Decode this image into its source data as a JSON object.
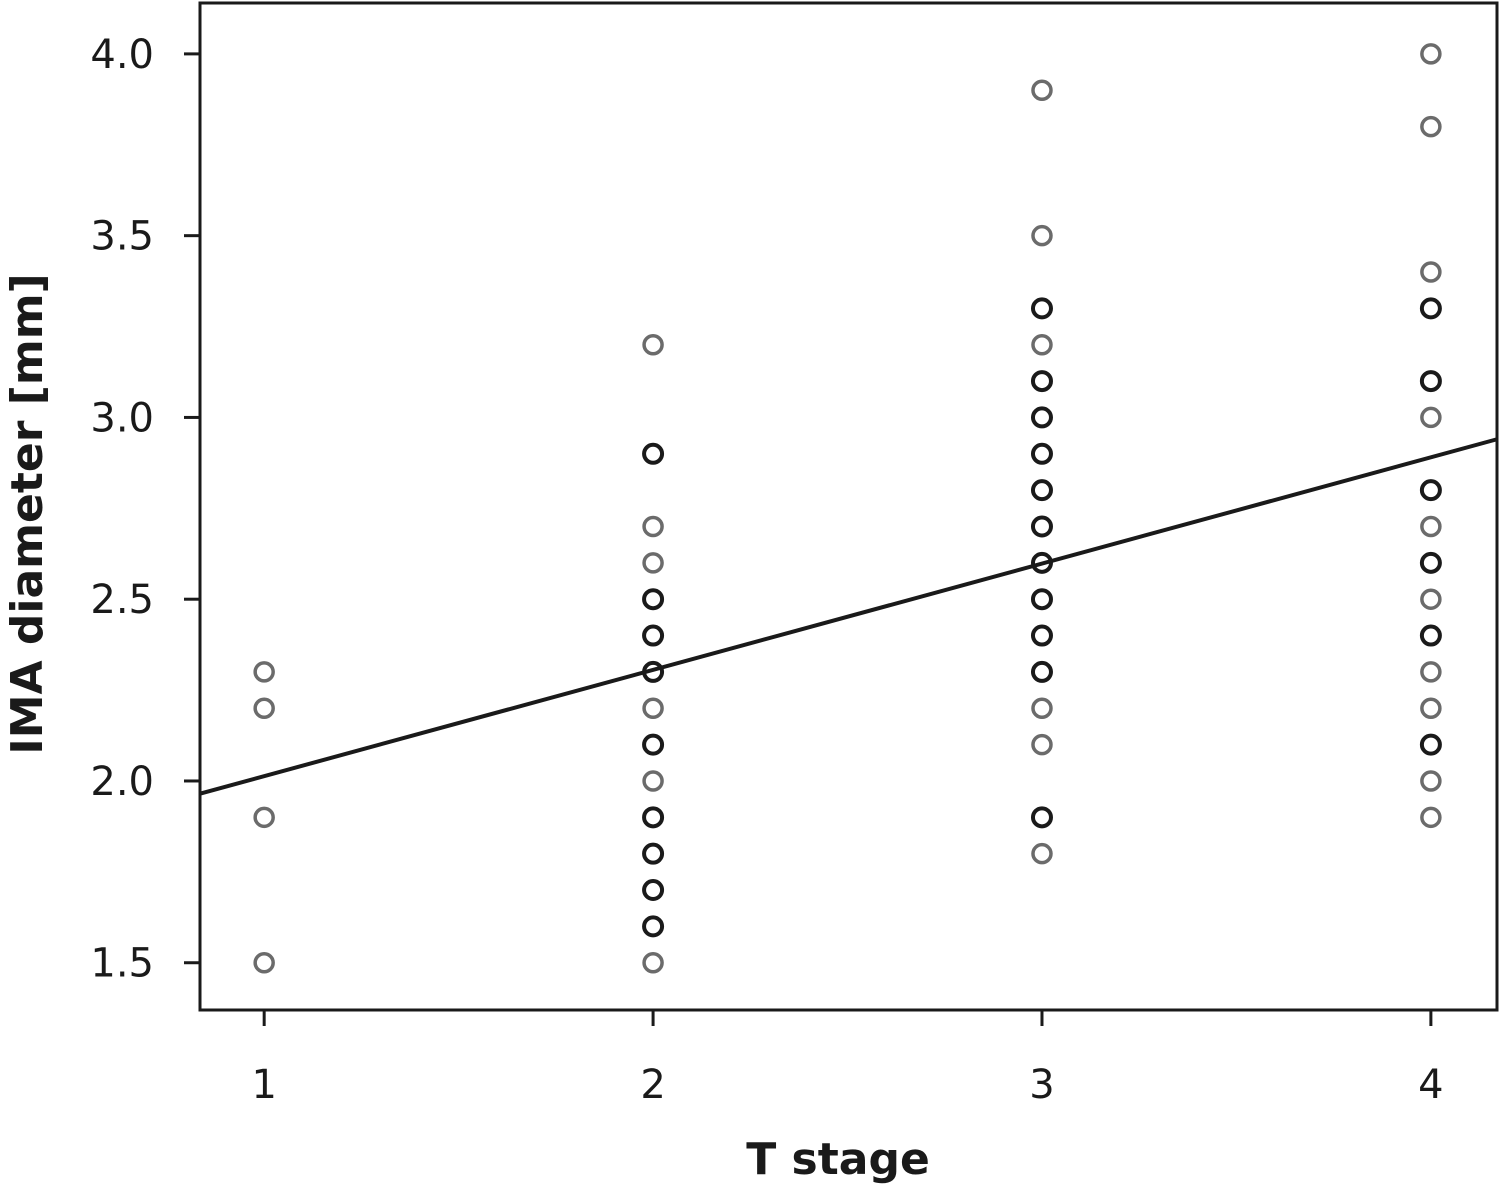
{
  "chart_data": {
    "type": "scatter",
    "xlabel": "T stage",
    "ylabel": "IMA diameter [mm]",
    "x_ticks": [
      1,
      2,
      3,
      4
    ],
    "x_tick_labels": [
      "1",
      "2",
      "3",
      "4"
    ],
    "y_ticks": [
      1.5,
      2.0,
      2.5,
      3.0,
      3.5,
      4.0
    ],
    "y_tick_labels": [
      "1.5",
      "2.0",
      "2.5",
      "3.0",
      "3.5",
      "4.0"
    ],
    "xlim": [
      0.835,
      4.17
    ],
    "ylim": [
      1.37,
      4.14
    ],
    "grid": false,
    "colors": {
      "single": "#6b6b6b",
      "overlap": "#1a1a1a",
      "line": "#1a1a1a"
    },
    "points": [
      {
        "x": 1,
        "y": 2.3,
        "n": 1
      },
      {
        "x": 1,
        "y": 2.2,
        "n": 1
      },
      {
        "x": 1,
        "y": 1.9,
        "n": 1
      },
      {
        "x": 1,
        "y": 1.5,
        "n": 1
      },
      {
        "x": 2,
        "y": 3.2,
        "n": 1
      },
      {
        "x": 2,
        "y": 2.9,
        "n": 2
      },
      {
        "x": 2,
        "y": 2.7,
        "n": 1
      },
      {
        "x": 2,
        "y": 2.6,
        "n": 1
      },
      {
        "x": 2,
        "y": 2.5,
        "n": 2
      },
      {
        "x": 2,
        "y": 2.4,
        "n": 2
      },
      {
        "x": 2,
        "y": 2.3,
        "n": 2
      },
      {
        "x": 2,
        "y": 2.2,
        "n": 1
      },
      {
        "x": 2,
        "y": 2.1,
        "n": 2
      },
      {
        "x": 2,
        "y": 2.0,
        "n": 1
      },
      {
        "x": 2,
        "y": 1.9,
        "n": 2
      },
      {
        "x": 2,
        "y": 1.8,
        "n": 2
      },
      {
        "x": 2,
        "y": 1.7,
        "n": 2
      },
      {
        "x": 2,
        "y": 1.6,
        "n": 2
      },
      {
        "x": 2,
        "y": 1.5,
        "n": 1
      },
      {
        "x": 3,
        "y": 3.9,
        "n": 1
      },
      {
        "x": 3,
        "y": 3.5,
        "n": 1
      },
      {
        "x": 3,
        "y": 3.3,
        "n": 2
      },
      {
        "x": 3,
        "y": 3.2,
        "n": 1
      },
      {
        "x": 3,
        "y": 3.1,
        "n": 2
      },
      {
        "x": 3,
        "y": 3.0,
        "n": 2
      },
      {
        "x": 3,
        "y": 2.9,
        "n": 2
      },
      {
        "x": 3,
        "y": 2.8,
        "n": 2
      },
      {
        "x": 3,
        "y": 2.7,
        "n": 2
      },
      {
        "x": 3,
        "y": 2.6,
        "n": 2
      },
      {
        "x": 3,
        "y": 2.5,
        "n": 2
      },
      {
        "x": 3,
        "y": 2.4,
        "n": 2
      },
      {
        "x": 3,
        "y": 2.3,
        "n": 2
      },
      {
        "x": 3,
        "y": 2.2,
        "n": 1
      },
      {
        "x": 3,
        "y": 2.1,
        "n": 1
      },
      {
        "x": 3,
        "y": 1.9,
        "n": 2
      },
      {
        "x": 3,
        "y": 1.8,
        "n": 1
      },
      {
        "x": 4,
        "y": 4.0,
        "n": 1
      },
      {
        "x": 4,
        "y": 3.8,
        "n": 1
      },
      {
        "x": 4,
        "y": 3.4,
        "n": 1
      },
      {
        "x": 4,
        "y": 3.3,
        "n": 2
      },
      {
        "x": 4,
        "y": 3.1,
        "n": 2
      },
      {
        "x": 4,
        "y": 3.0,
        "n": 1
      },
      {
        "x": 4,
        "y": 2.8,
        "n": 2
      },
      {
        "x": 4,
        "y": 2.7,
        "n": 1
      },
      {
        "x": 4,
        "y": 2.6,
        "n": 2
      },
      {
        "x": 4,
        "y": 2.5,
        "n": 1
      },
      {
        "x": 4,
        "y": 2.4,
        "n": 2
      },
      {
        "x": 4,
        "y": 2.3,
        "n": 1
      },
      {
        "x": 4,
        "y": 2.2,
        "n": 1
      },
      {
        "x": 4,
        "y": 2.1,
        "n": 2
      },
      {
        "x": 4,
        "y": 2.0,
        "n": 1
      },
      {
        "x": 4,
        "y": 1.9,
        "n": 1
      }
    ],
    "fit_line": {
      "x": [
        0.835,
        4.17
      ],
      "y": [
        1.965,
        2.94
      ]
    }
  }
}
